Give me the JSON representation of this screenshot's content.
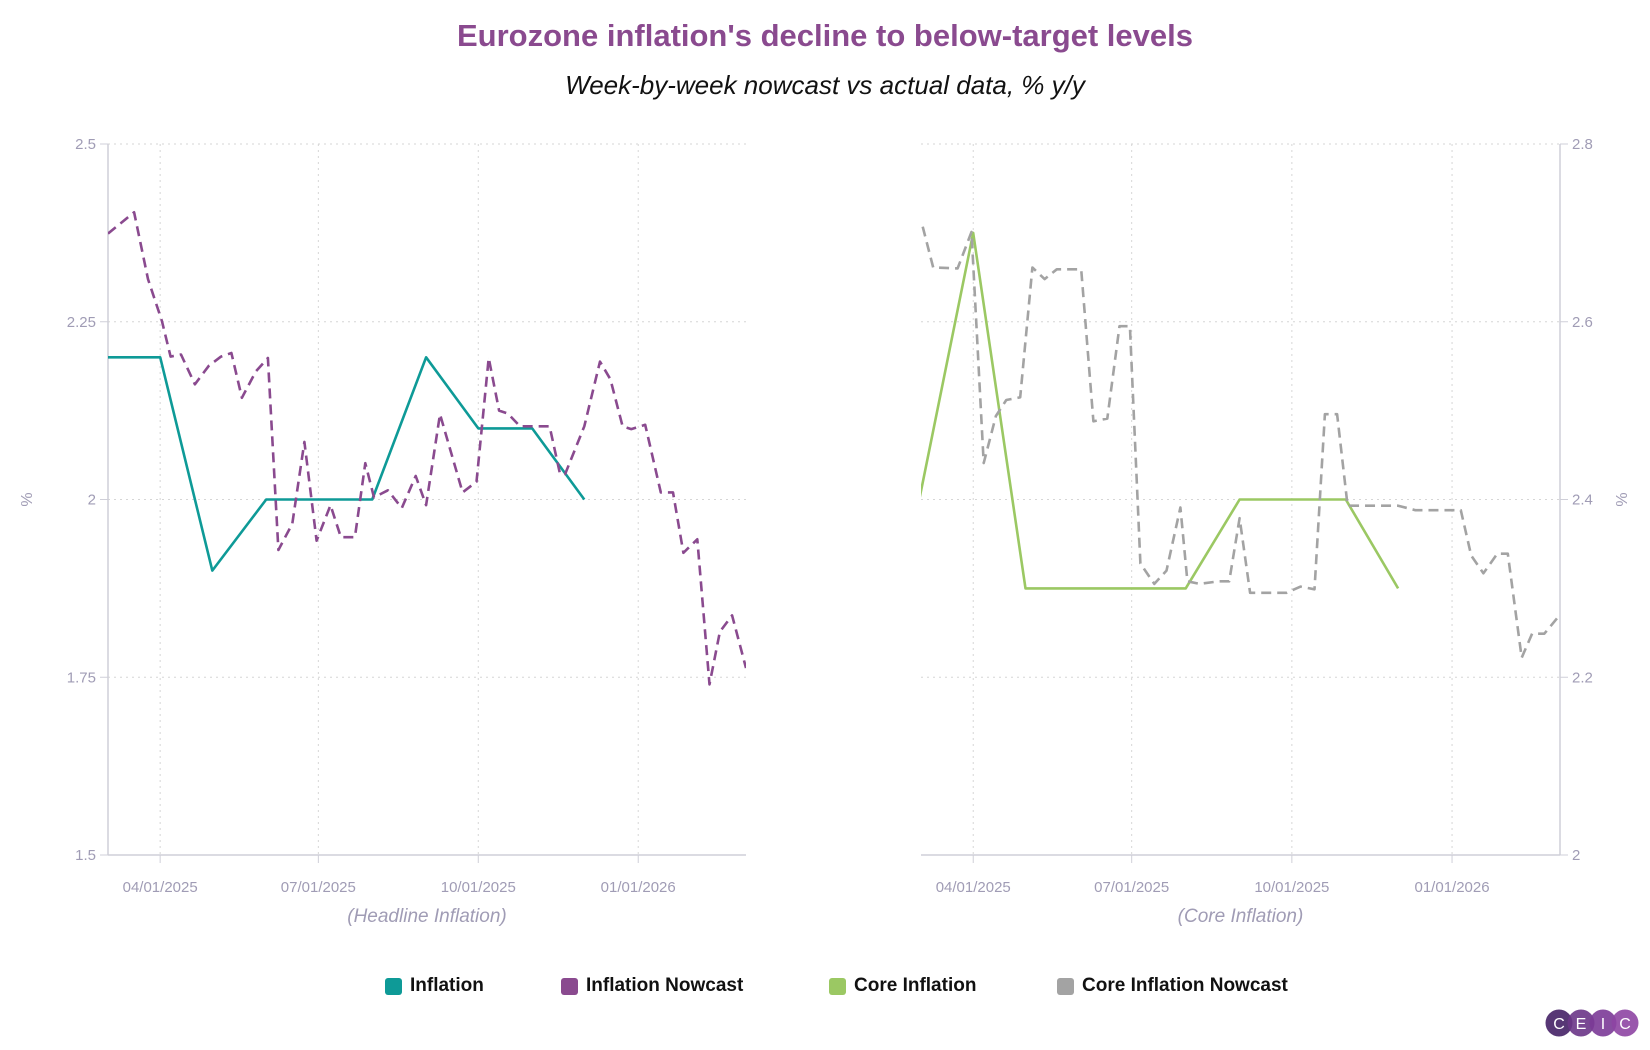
{
  "title": "Eurozone inflation's decline to below-target levels",
  "subtitle": "Week-by-week nowcast vs actual data, % y/y",
  "logo_text": "CEIC",
  "colors": {
    "title": "#8a4a8f",
    "inflation": "#0e9a97",
    "inflation_nowcast": "#8a4a8f",
    "core_inflation": "#9bc863",
    "core_nowcast": "#a3a3a3",
    "axis_text": "#a09cb5"
  },
  "legend": [
    {
      "label": "Inflation",
      "color": "#0e9a97"
    },
    {
      "label": "Inflation Nowcast",
      "color": "#8a4a8f"
    },
    {
      "label": "Core Inflation",
      "color": "#9bc863"
    },
    {
      "label": "Core Inflation Nowcast",
      "color": "#a3a3a3"
    }
  ],
  "chart_data": [
    {
      "type": "line",
      "xlabel": "(Headline Inflation)",
      "ylabel": "%",
      "xlim": [
        "2025-03-02",
        "2026-03-04"
      ],
      "ylim": [
        1.5,
        2.5
      ],
      "yticks": [
        1.5,
        1.75,
        2,
        2.25,
        2.5
      ],
      "ytick_labels": [
        "1.5",
        "1.75",
        "2",
        "2.25",
        "2.5"
      ],
      "xticks": [
        "2025-04-01",
        "2025-07-01",
        "2025-10-01",
        "2026-01-01"
      ],
      "xtick_labels": [
        "04/01/2025",
        "07/01/2025",
        "10/01/2025",
        "01/01/2026"
      ],
      "y_axis_side": "left",
      "grid": true,
      "series": [
        {
          "name": "Inflation",
          "style": "solid",
          "color": "#0e9a97",
          "points": [
            [
              "2025-03-01",
              2.2
            ],
            [
              "2025-04-01",
              2.2
            ],
            [
              "2025-05-01",
              1.9
            ],
            [
              "2025-06-01",
              2.0
            ],
            [
              "2025-07-01",
              2.0
            ],
            [
              "2025-08-01",
              2.0
            ],
            [
              "2025-09-01",
              2.2
            ],
            [
              "2025-10-01",
              2.1
            ],
            [
              "2025-11-01",
              2.1
            ],
            [
              "2025-12-01",
              2.0
            ]
          ]
        },
        {
          "name": "Inflation Nowcast",
          "style": "dashed",
          "color": "#8a4a8f",
          "points": [
            [
              "2025-03-02",
              2.374
            ],
            [
              "2025-03-17",
              2.404
            ],
            [
              "2025-03-25",
              2.31
            ],
            [
              "2025-04-02",
              2.251
            ],
            [
              "2025-04-07",
              2.201
            ],
            [
              "2025-04-13",
              2.204
            ],
            [
              "2025-04-21",
              2.162
            ],
            [
              "2025-04-29",
              2.188
            ],
            [
              "2025-05-06",
              2.201
            ],
            [
              "2025-05-12",
              2.206
            ],
            [
              "2025-05-18",
              2.143
            ],
            [
              "2025-05-26",
              2.18
            ],
            [
              "2025-06-02",
              2.199
            ],
            [
              "2025-06-08",
              1.929
            ],
            [
              "2025-06-16",
              1.966
            ],
            [
              "2025-06-23",
              2.081
            ],
            [
              "2025-06-30",
              1.942
            ],
            [
              "2025-07-08",
              1.992
            ],
            [
              "2025-07-14",
              1.947
            ],
            [
              "2025-07-22",
              1.947
            ],
            [
              "2025-07-28",
              2.051
            ],
            [
              "2025-08-02",
              2.003
            ],
            [
              "2025-08-10",
              2.013
            ],
            [
              "2025-08-18",
              1.988
            ],
            [
              "2025-08-26",
              2.033
            ],
            [
              "2025-09-01",
              1.992
            ],
            [
              "2025-09-09",
              2.12
            ],
            [
              "2025-09-22",
              2.01
            ],
            [
              "2025-09-30",
              2.025
            ],
            [
              "2025-10-07",
              2.199
            ],
            [
              "2025-10-13",
              2.125
            ],
            [
              "2025-10-18",
              2.121
            ],
            [
              "2025-10-25",
              2.103
            ],
            [
              "2025-11-11",
              2.103
            ],
            [
              "2025-11-17",
              2.036
            ],
            [
              "2025-11-20",
              2.036
            ],
            [
              "2025-12-01",
              2.103
            ],
            [
              "2025-12-10",
              2.194
            ],
            [
              "2025-12-16",
              2.169
            ],
            [
              "2025-12-23",
              2.103
            ],
            [
              "2025-12-28",
              2.099
            ],
            [
              "2026-01-05",
              2.105
            ],
            [
              "2026-01-14",
              2.01
            ],
            [
              "2026-01-21",
              2.01
            ],
            [
              "2026-01-27",
              1.925
            ],
            [
              "2026-02-04",
              1.944
            ],
            [
              "2026-02-11",
              1.74
            ],
            [
              "2026-02-17",
              1.814
            ],
            [
              "2026-02-24",
              1.837
            ],
            [
              "2026-03-04",
              1.763
            ]
          ]
        }
      ]
    },
    {
      "type": "line",
      "xlabel": "(Core Inflation)",
      "ylabel": "%",
      "xlim": [
        "2025-03-02",
        "2026-03-04"
      ],
      "ylim": [
        2.0,
        2.8
      ],
      "yticks": [
        2.0,
        2.2,
        2.4,
        2.6,
        2.8
      ],
      "ytick_labels": [
        "2",
        "2.2",
        "2.4",
        "2.6",
        "2.8"
      ],
      "xticks": [
        "2025-04-01",
        "2025-07-01",
        "2025-10-01",
        "2026-01-01"
      ],
      "xtick_labels": [
        "04/01/2025",
        "07/01/2025",
        "10/01/2025",
        "01/01/2026"
      ],
      "y_axis_side": "right",
      "grid": true,
      "series": [
        {
          "name": "Core Inflation",
          "style": "solid",
          "color": "#9bc863",
          "points": [
            [
              "2025-03-01",
              2.4
            ],
            [
              "2025-04-01",
              2.7
            ],
            [
              "2025-05-01",
              2.3
            ],
            [
              "2025-06-01",
              2.3
            ],
            [
              "2025-07-01",
              2.3
            ],
            [
              "2025-08-01",
              2.3
            ],
            [
              "2025-09-01",
              2.4
            ],
            [
              "2025-10-01",
              2.4
            ],
            [
              "2025-11-01",
              2.4
            ],
            [
              "2025-12-01",
              2.3
            ]
          ]
        },
        {
          "name": "Core Inflation Nowcast",
          "style": "dashed",
          "color": "#a3a3a3",
          "points": [
            [
              "2025-03-03",
              2.707
            ],
            [
              "2025-03-09",
              2.661
            ],
            [
              "2025-03-23",
              2.66
            ],
            [
              "2025-03-31",
              2.701
            ],
            [
              "2025-04-07",
              2.441
            ],
            [
              "2025-04-14",
              2.494
            ],
            [
              "2025-04-20",
              2.512
            ],
            [
              "2025-04-28",
              2.515
            ],
            [
              "2025-05-05",
              2.661
            ],
            [
              "2025-05-12",
              2.648
            ],
            [
              "2025-05-19",
              2.659
            ],
            [
              "2025-06-02",
              2.659
            ],
            [
              "2025-06-09",
              2.488
            ],
            [
              "2025-06-17",
              2.491
            ],
            [
              "2025-06-24",
              2.595
            ],
            [
              "2025-06-30",
              2.595
            ],
            [
              "2025-07-06",
              2.328
            ],
            [
              "2025-07-14",
              2.305
            ],
            [
              "2025-07-21",
              2.32
            ],
            [
              "2025-07-29",
              2.391
            ],
            [
              "2025-08-02",
              2.308
            ],
            [
              "2025-08-09",
              2.305
            ],
            [
              "2025-08-20",
              2.308
            ],
            [
              "2025-08-26",
              2.308
            ],
            [
              "2025-09-01",
              2.379
            ],
            [
              "2025-09-07",
              2.295
            ],
            [
              "2025-09-28",
              2.295
            ],
            [
              "2025-10-06",
              2.302
            ],
            [
              "2025-10-14",
              2.299
            ],
            [
              "2025-10-20",
              2.496
            ],
            [
              "2025-10-27",
              2.496
            ],
            [
              "2025-11-02",
              2.393
            ],
            [
              "2025-12-01",
              2.393
            ],
            [
              "2025-12-11",
              2.388
            ],
            [
              "2026-01-06",
              2.388
            ],
            [
              "2026-01-12",
              2.337
            ],
            [
              "2026-01-19",
              2.317
            ],
            [
              "2026-01-27",
              2.339
            ],
            [
              "2026-02-02",
              2.339
            ],
            [
              "2026-02-10",
              2.222
            ],
            [
              "2026-02-16",
              2.249
            ],
            [
              "2026-02-23",
              2.249
            ],
            [
              "2026-03-03",
              2.268
            ]
          ]
        }
      ]
    }
  ]
}
